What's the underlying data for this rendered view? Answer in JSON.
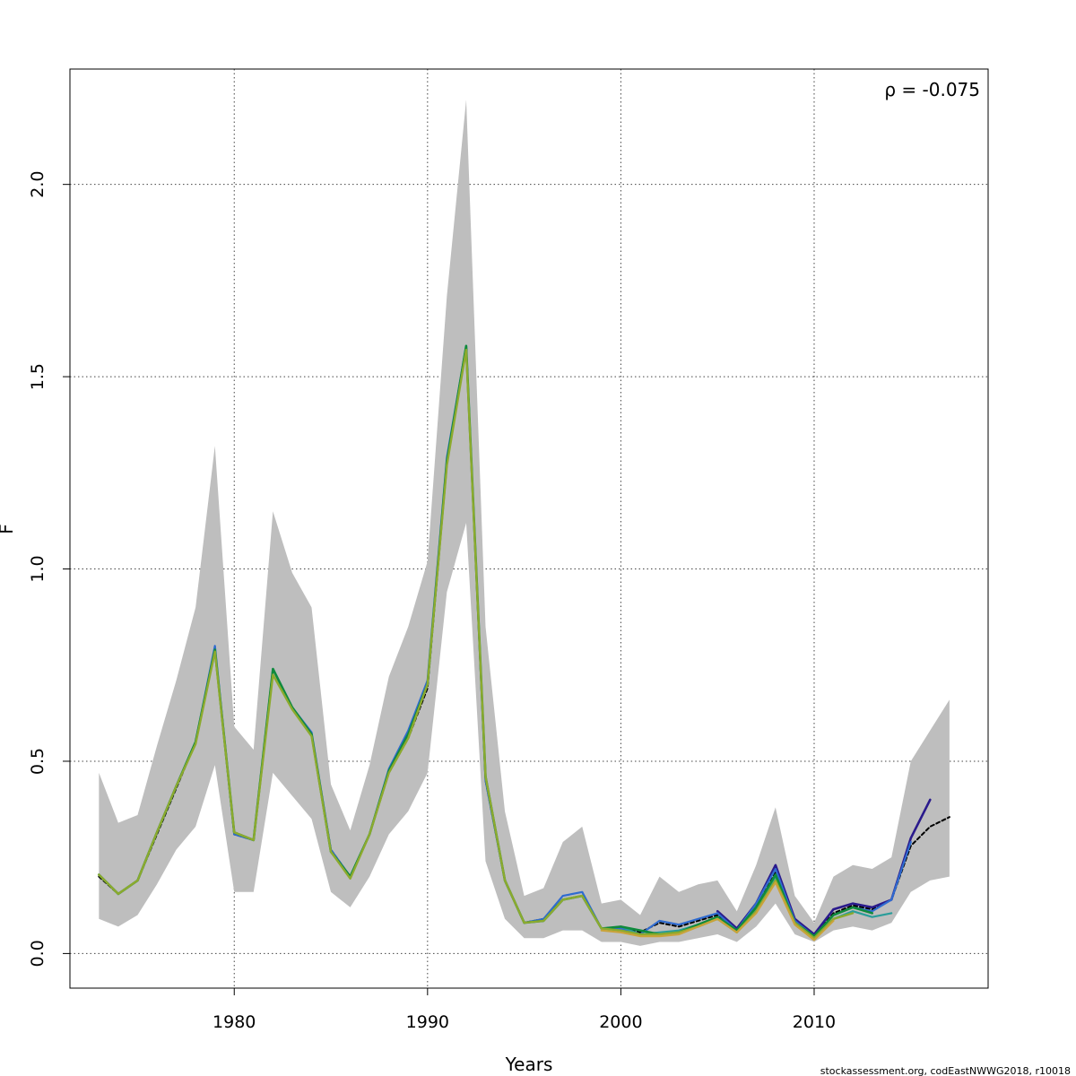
{
  "chart_data": {
    "type": "line",
    "title": "",
    "xlabel": "Years",
    "ylabel": "F",
    "xlim": [
      1971.5,
      2019.0
    ],
    "ylim": [
      -0.09,
      2.3
    ],
    "xticks": [
      1980,
      1990,
      2000,
      2010
    ],
    "yticks": [
      0.0,
      0.5,
      1.0,
      1.5,
      2.0
    ],
    "xtick_labels": [
      "1980",
      "1990",
      "2000",
      "2010"
    ],
    "ytick_labels": [
      "0.0",
      "0.5",
      "1.0",
      "1.5",
      "2.0"
    ],
    "grid": true,
    "annotation": "ρ = -0.075",
    "credit": "stockassessment.org, codEastNWWG2018, r10018",
    "colors": {
      "band": "#bebebe",
      "base": "#000000",
      "peel1": "#2a1a8c",
      "peel2": "#2f6bd0",
      "peel3": "#2a9d9a",
      "peel4": "#0f8a3c",
      "peel5": "#8caa2e",
      "peel6": "#c9a33a",
      "grid": "#444444"
    },
    "band": {
      "x": [
        1973,
        1974,
        1975,
        1976,
        1977,
        1978,
        1979,
        1980,
        1981,
        1982,
        1983,
        1984,
        1985,
        1986,
        1987,
        1988,
        1989,
        1990,
        1991,
        1992,
        1993,
        1994,
        1995,
        1996,
        1997,
        1998,
        1999,
        2000,
        2001,
        2002,
        2003,
        2004,
        2005,
        2006,
        2007,
        2008,
        2009,
        2010,
        2011,
        2012,
        2013,
        2014,
        2015,
        2016,
        2017
      ],
      "upper": [
        0.47,
        0.34,
        0.36,
        0.54,
        0.71,
        0.9,
        1.32,
        0.59,
        0.53,
        1.15,
        0.99,
        0.9,
        0.44,
        0.32,
        0.49,
        0.72,
        0.85,
        1.02,
        1.71,
        2.22,
        0.85,
        0.37,
        0.15,
        0.17,
        0.29,
        0.33,
        0.13,
        0.14,
        0.1,
        0.2,
        0.16,
        0.18,
        0.19,
        0.11,
        0.23,
        0.38,
        0.15,
        0.08,
        0.2,
        0.23,
        0.22,
        0.25,
        0.5,
        0.58,
        0.66
      ],
      "lower": [
        0.09,
        0.07,
        0.1,
        0.18,
        0.27,
        0.33,
        0.49,
        0.16,
        0.16,
        0.47,
        0.41,
        0.35,
        0.16,
        0.12,
        0.2,
        0.31,
        0.37,
        0.47,
        0.94,
        1.12,
        0.24,
        0.09,
        0.04,
        0.04,
        0.06,
        0.06,
        0.03,
        0.03,
        0.02,
        0.03,
        0.03,
        0.04,
        0.05,
        0.03,
        0.07,
        0.13,
        0.05,
        0.03,
        0.06,
        0.07,
        0.06,
        0.08,
        0.16,
        0.19,
        0.2
      ]
    },
    "series": [
      {
        "name": "base",
        "x": [
          1973,
          1974,
          1975,
          1976,
          1977,
          1978,
          1979,
          1980,
          1981,
          1982,
          1983,
          1984,
          1985,
          1986,
          1987,
          1988,
          1989,
          1990,
          1991,
          1992,
          1993,
          1994,
          1995,
          1996,
          1997,
          1998,
          1999,
          2000,
          2001,
          2002,
          2003,
          2004,
          2005,
          2006,
          2007,
          2008,
          2009,
          2010,
          2011,
          2012,
          2013,
          2014,
          2015,
          2016,
          2017
        ],
        "values": [
          0.2,
          0.155,
          0.19,
          0.31,
          0.43,
          0.55,
          0.79,
          0.31,
          0.295,
          0.74,
          0.64,
          0.57,
          0.27,
          0.2,
          0.31,
          0.47,
          0.56,
          0.69,
          1.28,
          1.58,
          0.45,
          0.19,
          0.08,
          0.09,
          0.14,
          0.15,
          0.065,
          0.07,
          0.055,
          0.08,
          0.07,
          0.085,
          0.1,
          0.06,
          0.12,
          0.21,
          0.085,
          0.045,
          0.105,
          0.125,
          0.115,
          0.14,
          0.28,
          0.33,
          0.355
        ]
      },
      {
        "name": "peel-1",
        "x": [
          2005,
          2006,
          2007,
          2008,
          2009,
          2010,
          2011,
          2012,
          2013,
          2014,
          2015,
          2016
        ],
        "values": [
          0.11,
          0.065,
          0.13,
          0.23,
          0.09,
          0.05,
          0.115,
          0.13,
          0.12,
          0.14,
          0.3,
          0.4
        ]
      },
      {
        "name": "peel-2",
        "x": [
          1973,
          1974,
          1975,
          1976,
          1977,
          1978,
          1979,
          1980,
          1981,
          1982,
          1983,
          1984,
          1985,
          1986,
          1987,
          1988,
          1989,
          1990,
          1991,
          1992,
          1993,
          1994,
          1995,
          1996,
          1997,
          1998,
          1999,
          2000,
          2001,
          2002,
          2003,
          2004,
          2005,
          2006,
          2007,
          2008,
          2009,
          2010,
          2011,
          2012,
          2013,
          2014,
          2015
        ],
        "values": [
          0.205,
          0.155,
          0.19,
          0.315,
          0.435,
          0.55,
          0.8,
          0.31,
          0.295,
          0.74,
          0.64,
          0.575,
          0.27,
          0.2,
          0.31,
          0.48,
          0.58,
          0.71,
          1.29,
          1.58,
          0.45,
          0.19,
          0.08,
          0.09,
          0.15,
          0.16,
          0.065,
          0.065,
          0.05,
          0.085,
          0.075,
          0.09,
          0.105,
          0.06,
          0.13,
          0.22,
          0.085,
          0.045,
          0.1,
          0.12,
          0.11,
          0.14,
          0.29
        ]
      },
      {
        "name": "peel-3",
        "x": [
          2000,
          2001,
          2002,
          2003,
          2004,
          2005,
          2006,
          2007,
          2008,
          2009,
          2010,
          2011,
          2012,
          2013,
          2014
        ],
        "values": [
          0.07,
          0.05,
          0.055,
          0.06,
          0.075,
          0.095,
          0.055,
          0.115,
          0.2,
          0.08,
          0.04,
          0.09,
          0.11,
          0.095,
          0.105
        ]
      },
      {
        "name": "peel-4",
        "x": [
          1973,
          1974,
          1975,
          1976,
          1977,
          1978,
          1979,
          1980,
          1981,
          1982,
          1983,
          1984,
          1985,
          1986,
          1987,
          1988,
          1989,
          1990,
          1991,
          1992,
          1993,
          1994,
          1995,
          1996,
          1997,
          1998,
          1999,
          2000,
          2001,
          2002,
          2003,
          2004,
          2005,
          2006,
          2007,
          2008,
          2009,
          2010,
          2011,
          2012,
          2013
        ],
        "values": [
          0.205,
          0.155,
          0.19,
          0.315,
          0.435,
          0.55,
          0.79,
          0.315,
          0.295,
          0.74,
          0.64,
          0.57,
          0.265,
          0.2,
          0.31,
          0.475,
          0.57,
          0.7,
          1.28,
          1.58,
          0.46,
          0.19,
          0.08,
          0.085,
          0.14,
          0.15,
          0.065,
          0.07,
          0.06,
          0.05,
          0.055,
          0.075,
          0.095,
          0.06,
          0.12,
          0.205,
          0.08,
          0.045,
          0.1,
          0.12,
          0.105
        ]
      },
      {
        "name": "peel-5",
        "x": [
          1973,
          1974,
          1975,
          1976,
          1977,
          1978,
          1979,
          1980,
          1981,
          1982,
          1983,
          1984,
          1985,
          1986,
          1987,
          1988,
          1989,
          1990,
          1991,
          1992,
          1993,
          1994,
          1995,
          1996,
          1997,
          1998,
          1999,
          2000,
          2001,
          2002,
          2003,
          2004,
          2005,
          2006,
          2007,
          2008,
          2009,
          2010,
          2011,
          2012
        ],
        "values": [
          0.205,
          0.155,
          0.19,
          0.315,
          0.435,
          0.545,
          0.785,
          0.315,
          0.295,
          0.725,
          0.635,
          0.565,
          0.265,
          0.195,
          0.31,
          0.47,
          0.56,
          0.7,
          1.27,
          1.57,
          0.46,
          0.19,
          0.08,
          0.085,
          0.14,
          0.15,
          0.065,
          0.06,
          0.05,
          0.05,
          0.055,
          0.07,
          0.09,
          0.055,
          0.11,
          0.19,
          0.08,
          0.04,
          0.09,
          0.105
        ]
      },
      {
        "name": "peel-6",
        "x": [
          1999,
          2000,
          2001,
          2002,
          2003,
          2004,
          2005,
          2006,
          2007,
          2008,
          2009,
          2010,
          2011
        ],
        "values": [
          0.06,
          0.055,
          0.045,
          0.045,
          0.05,
          0.07,
          0.09,
          0.055,
          0.105,
          0.185,
          0.075,
          0.035,
          0.085
        ]
      }
    ]
  }
}
